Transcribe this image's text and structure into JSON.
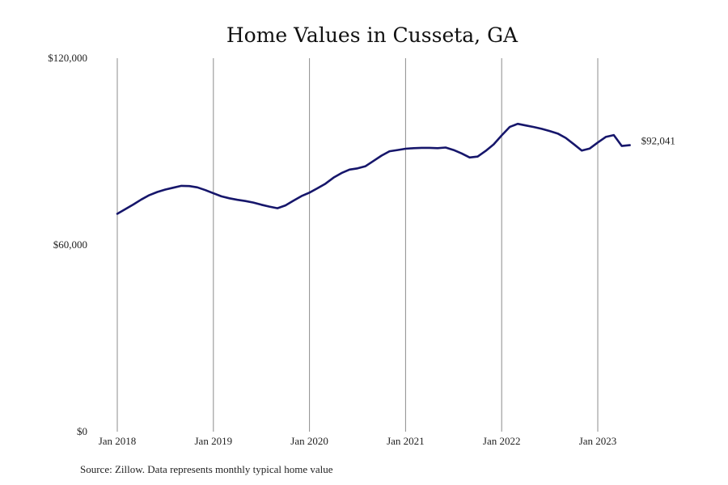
{
  "chart_data": {
    "type": "line",
    "title": "Home Values in Cusseta, GA",
    "xlabel": "",
    "ylabel": "",
    "ylim": [
      0,
      120000
    ],
    "y_ticks": [
      "$0",
      "$60,000",
      "$120,000"
    ],
    "y_tick_values": [
      0,
      60000,
      120000
    ],
    "x_range": [
      "2018-01",
      "2023-05"
    ],
    "x_ticks": [
      "Jan 2018",
      "Jan 2019",
      "Jan 2020",
      "Jan 2021",
      "Jan 2022",
      "Jan 2023"
    ],
    "x_tick_dates": [
      "2018-01",
      "2019-01",
      "2020-01",
      "2021-01",
      "2022-01",
      "2023-01"
    ],
    "grid": "vertical lines at each year",
    "colors": {
      "series": "#16166b",
      "grid": "#8c8c8c"
    },
    "end_label": "$92,041",
    "series": [
      {
        "x": [
          "2018-01",
          "2018-02",
          "2018-03",
          "2018-04",
          "2018-05",
          "2018-06",
          "2018-07",
          "2018-08",
          "2018-09",
          "2018-10",
          "2018-11",
          "2018-12",
          "2019-01",
          "2019-02",
          "2019-03",
          "2019-04",
          "2019-05",
          "2019-06",
          "2019-07",
          "2019-08",
          "2019-09",
          "2019-10",
          "2019-11",
          "2019-12",
          "2020-01",
          "2020-02",
          "2020-03",
          "2020-04",
          "2020-05",
          "2020-06",
          "2020-07",
          "2020-08",
          "2020-09",
          "2020-10",
          "2020-11",
          "2020-12",
          "2021-01",
          "2021-02",
          "2021-03",
          "2021-04",
          "2021-05",
          "2021-06",
          "2021-07",
          "2021-08",
          "2021-09",
          "2021-10",
          "2021-11",
          "2021-12",
          "2022-01",
          "2022-02",
          "2022-03",
          "2022-04",
          "2022-05",
          "2022-06",
          "2022-07",
          "2022-08",
          "2022-09",
          "2022-10",
          "2022-11",
          "2022-12",
          "2023-01",
          "2023-02",
          "2023-03",
          "2023-04",
          "2023-05"
        ],
        "values": [
          70000,
          71500,
          73000,
          74600,
          76000,
          77000,
          77800,
          78400,
          79000,
          78900,
          78500,
          77600,
          76600,
          75600,
          75000,
          74500,
          74100,
          73600,
          72900,
          72300,
          71800,
          72700,
          74200,
          75700,
          76800,
          78200,
          79700,
          81600,
          83100,
          84200,
          84600,
          85300,
          87000,
          88700,
          90100,
          90500,
          90900,
          91100,
          91200,
          91200,
          91100,
          91300,
          90500,
          89400,
          88100,
          88400,
          90200,
          92300,
          95200,
          97900,
          98900,
          98400,
          97900,
          97300,
          96600,
          95800,
          94400,
          92400,
          90300,
          91000,
          92900,
          94700,
          95300,
          91800,
          92041
        ]
      }
    ]
  },
  "source_text": "Source: Zillow. Data represents monthly typical home value"
}
